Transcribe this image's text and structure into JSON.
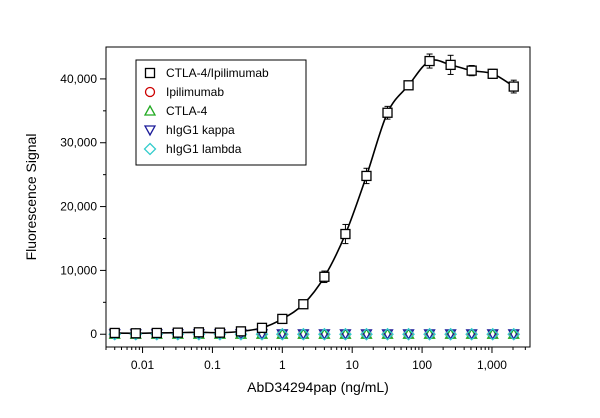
{
  "chart_data": {
    "type": "scatter",
    "title": "",
    "xlabel": "AbD34294pap (ng/mL)",
    "ylabel": "Fluorescence Signal",
    "x_scale": "log",
    "xlim": [
      0.003,
      3500
    ],
    "ylim": [
      -2000,
      45000
    ],
    "xticks": [
      0.01,
      0.1,
      1,
      10,
      100,
      1000
    ],
    "xtick_labels": [
      "0.01",
      "0.1",
      "1",
      "10",
      "100",
      "1,000"
    ],
    "yticks": [
      0,
      10000,
      20000,
      30000,
      40000
    ],
    "ytick_labels": [
      "0",
      "10,000",
      "20,000",
      "30,000",
      "40,000"
    ],
    "grid": false,
    "legend_position": "top-left",
    "series": [
      {
        "name": "CTLA-4/Ipilimumab",
        "marker": "square",
        "color": "#000000",
        "fit_curve": true,
        "x": [
          0.004,
          0.008,
          0.016,
          0.032,
          0.064,
          0.128,
          0.256,
          0.512,
          1,
          2,
          4,
          8,
          16,
          32,
          64,
          128,
          256,
          512,
          1024,
          2048
        ],
        "y": [
          200,
          150,
          200,
          250,
          300,
          250,
          450,
          1000,
          2400,
          4700,
          9000,
          15700,
          24800,
          34700,
          39000,
          42800,
          42200,
          41300,
          40800,
          38800
        ],
        "error": [
          200,
          200,
          200,
          200,
          200,
          200,
          300,
          400,
          400,
          500,
          900,
          1500,
          1200,
          1000,
          500,
          1100,
          1500,
          800,
          700,
          1000
        ]
      },
      {
        "name": "Ipilimumab",
        "marker": "circle",
        "color": "#cc0000",
        "x": [
          0.004,
          0.008,
          0.016,
          0.032,
          0.064,
          0.128,
          0.256,
          0.512,
          1,
          2,
          4,
          8,
          16,
          32,
          64,
          128,
          256,
          512,
          1024,
          2048
        ],
        "y": [
          0,
          0,
          0,
          0,
          0,
          0,
          0,
          0,
          0,
          0,
          0,
          0,
          0,
          0,
          0,
          0,
          0,
          0,
          0,
          0
        ]
      },
      {
        "name": "CTLA-4",
        "marker": "triangle-up",
        "color": "#22aa22",
        "x": [
          0.004,
          0.008,
          0.016,
          0.032,
          0.064,
          0.128,
          0.256,
          0.512,
          1,
          2,
          4,
          8,
          16,
          32,
          64,
          128,
          256,
          512,
          1024,
          2048
        ],
        "y": [
          0,
          0,
          0,
          0,
          0,
          0,
          0,
          0,
          0,
          0,
          0,
          0,
          0,
          0,
          0,
          0,
          0,
          0,
          0,
          0
        ]
      },
      {
        "name": "hIgG1 kappa",
        "marker": "triangle-down",
        "color": "#1a1a99",
        "x": [
          0.004,
          0.008,
          0.016,
          0.032,
          0.064,
          0.128,
          0.256,
          0.512,
          1,
          2,
          4,
          8,
          16,
          32,
          64,
          128,
          256,
          512,
          1024,
          2048
        ],
        "y": [
          50,
          50,
          50,
          50,
          50,
          50,
          50,
          50,
          50,
          50,
          50,
          50,
          50,
          50,
          50,
          50,
          50,
          50,
          50,
          50
        ]
      },
      {
        "name": "hIgG1 lambda",
        "marker": "diamond",
        "color": "#33cccc",
        "x": [
          0.004,
          0.008,
          0.016,
          0.032,
          0.064,
          0.128,
          0.256,
          0.512,
          1,
          2,
          4,
          8,
          16,
          32,
          64,
          128,
          256,
          512,
          1024,
          2048
        ],
        "y": [
          0,
          0,
          0,
          0,
          0,
          0,
          0,
          0,
          0,
          0,
          0,
          0,
          0,
          0,
          0,
          0,
          0,
          0,
          0,
          0
        ]
      }
    ]
  }
}
